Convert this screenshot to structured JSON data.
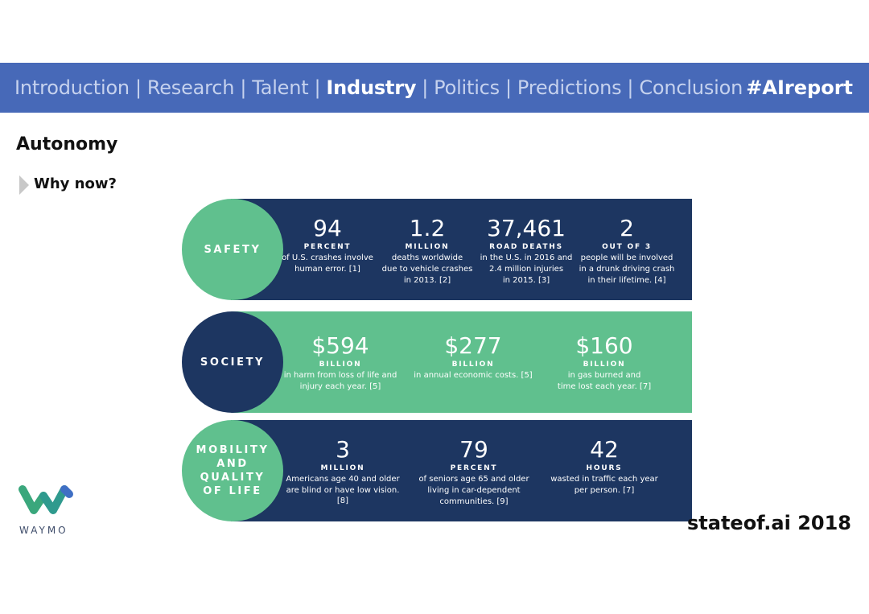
{
  "nav": {
    "items": [
      {
        "label": "Introduction",
        "active": false
      },
      {
        "label": "Research",
        "active": false
      },
      {
        "label": "Talent",
        "active": false
      },
      {
        "label": "Industry",
        "active": true
      },
      {
        "label": "Politics",
        "active": false
      },
      {
        "label": "Predictions",
        "active": false
      },
      {
        "label": "Conclusion",
        "active": false
      }
    ],
    "separator": "|",
    "hashtag": "#AIreport"
  },
  "page": {
    "title": "Autonomy",
    "subtitle": "Why now?"
  },
  "infographic": {
    "safety": {
      "label": "SAFETY",
      "stats": [
        {
          "num": "94",
          "unit": "PERCENT",
          "desc1": "of U.S. crashes involve",
          "desc2": "human error. [1]",
          "desc3": ""
        },
        {
          "num": "1.2",
          "unit": "MILLION",
          "desc1": "deaths worldwide",
          "desc2": "due to vehicle crashes",
          "desc3": "in 2013. [2]"
        },
        {
          "num": "37,461",
          "unit": "ROAD DEATHS",
          "desc1": "in the U.S. in 2016 and",
          "desc2": "2.4 million injuries",
          "desc3": "in 2015. [3]"
        },
        {
          "num": "2",
          "unit": "OUT OF 3",
          "desc1": "people will be involved",
          "desc2": "in a drunk driving crash",
          "desc3": "in their lifetime. [4]"
        }
      ]
    },
    "society": {
      "label": "SOCIETY",
      "stats": [
        {
          "num": "$594",
          "unit": "BILLION",
          "desc1": "in harm from loss of life and",
          "desc2": "injury each year. [5]"
        },
        {
          "num": "$277",
          "unit": "BILLION",
          "desc1": "in annual economic costs. [5]",
          "desc2": ""
        },
        {
          "num": "$160",
          "unit": "BILLION",
          "desc1": "in gas burned and",
          "desc2": "time lost each year. [7]"
        }
      ]
    },
    "mobility": {
      "label1": "MOBILITY",
      "label2": "AND",
      "label3": "QUALITY",
      "label4": "OF LIFE",
      "stats": [
        {
          "num": "3",
          "unit": "MILLION",
          "desc1": "Americans age 40 and older",
          "desc2": "are blind or have low vision. [8]",
          "desc3": ""
        },
        {
          "num": "79",
          "unit": "PERCENT",
          "desc1": "of seniors age 65 and older",
          "desc2": "living in car-dependent",
          "desc3": "communities. [9]"
        },
        {
          "num": "42",
          "unit": "HOURS",
          "desc1": "wasted in traffic each year",
          "desc2": "per person. [7]",
          "desc3": ""
        }
      ]
    }
  },
  "logo": {
    "text": "WAYMO"
  },
  "footer": {
    "text": "stateof.ai 2018"
  },
  "colors": {
    "nav_bg": "#4769b8",
    "dark_navy": "#1d3661",
    "green": "#60c08e"
  }
}
